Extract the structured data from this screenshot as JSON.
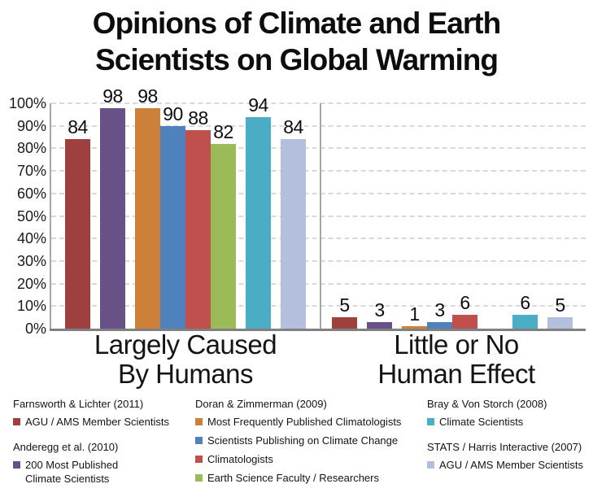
{
  "title": {
    "line1": "Opinions of Climate and Earth",
    "line2": "Scientists on Global Warming"
  },
  "chart_data": {
    "type": "bar",
    "title": "Opinions of Climate and Earth Scientists on Global Warming",
    "xlabel": "",
    "ylabel": "",
    "ylim": [
      0,
      100
    ],
    "y_ticks": [
      "0%",
      "10%",
      "20%",
      "30%",
      "40%",
      "50%",
      "60%",
      "70%",
      "80%",
      "90%",
      "100%"
    ],
    "grid": "horizontal-dashed",
    "legend_position": "bottom",
    "categories": [
      "Largely Caused By Humans",
      "Little or No Human Effect"
    ],
    "group_labels": [
      {
        "line1": "Largely Caused",
        "line2": "By Humans"
      },
      {
        "line1": "Little or No",
        "line2": "Human Effect"
      }
    ],
    "series": [
      {
        "study": "Farnsworth & Lichter (2011)",
        "name": "AGU / AMS Member Scientists",
        "color": "#9E413E",
        "values": [
          84,
          5
        ]
      },
      {
        "study": "Anderegg et al. (2010)",
        "name": "200 Most Published Climate Scientists",
        "color": "#675187",
        "values": [
          98,
          3
        ]
      },
      {
        "study": "Doran & Zimmerman (2009)",
        "name": "Most Frequently Published Climatologists",
        "color": "#CC8039",
        "values": [
          98,
          1
        ]
      },
      {
        "study": "Doran & Zimmerman (2009)",
        "name": "Scientists Publishing on Climate Change",
        "color": "#4F81BD",
        "values": [
          90,
          3
        ]
      },
      {
        "study": "Doran & Zimmerman (2009)",
        "name": "Climatologists",
        "color": "#C0504D",
        "values": [
          88,
          6
        ]
      },
      {
        "study": "Doran & Zimmerman (2009)",
        "name": "Earth Science Faculty / Researchers",
        "color": "#9BBB59",
        "values": [
          82,
          null
        ]
      },
      {
        "study": "Bray & Von Storch (2008)",
        "name": "Climate Scientists",
        "color": "#4BACC6",
        "values": [
          94,
          6
        ]
      },
      {
        "study": "STATS / Harris Interactive (2007)",
        "name": "AGU / AMS Member Scientists",
        "color": "#B3BFDC",
        "values": [
          84,
          5
        ]
      }
    ]
  },
  "legend": {
    "columns": [
      {
        "blocks": [
          {
            "heading": "Farnsworth & Lichter (2011)",
            "items": [
              {
                "color": "#9E413E",
                "label": "AGU / AMS Member Scientists"
              }
            ]
          },
          {
            "heading": "Anderegg et al. (2010)",
            "items": [
              {
                "color": "#675187",
                "label": "200 Most Published\nClimate Scientists"
              }
            ]
          }
        ]
      },
      {
        "blocks": [
          {
            "heading": "Doran & Zimmerman (2009)",
            "items": [
              {
                "color": "#CC8039",
                "label": "Most Frequently Published Climatologists"
              },
              {
                "color": "#4F81BD",
                "label": "Scientists Publishing on Climate Change"
              },
              {
                "color": "#C0504D",
                "label": "Climatologists"
              },
              {
                "color": "#9BBB59",
                "label": "Earth Science Faculty / Researchers"
              }
            ]
          }
        ]
      },
      {
        "blocks": [
          {
            "heading": "Bray & Von Storch (2008)",
            "items": [
              {
                "color": "#4BACC6",
                "label": "Climate Scientists"
              }
            ]
          },
          {
            "heading": "STATS / Harris Interactive (2007)",
            "items": [
              {
                "color": "#B3BFDC",
                "label": "AGU / AMS Member Scientists"
              }
            ]
          }
        ]
      }
    ]
  },
  "style_colors": {
    "axis_line": "#A6A6A6",
    "x_axis_line": "#808080",
    "gridline": "#D9D9D9",
    "text": "#0D0D0D"
  }
}
